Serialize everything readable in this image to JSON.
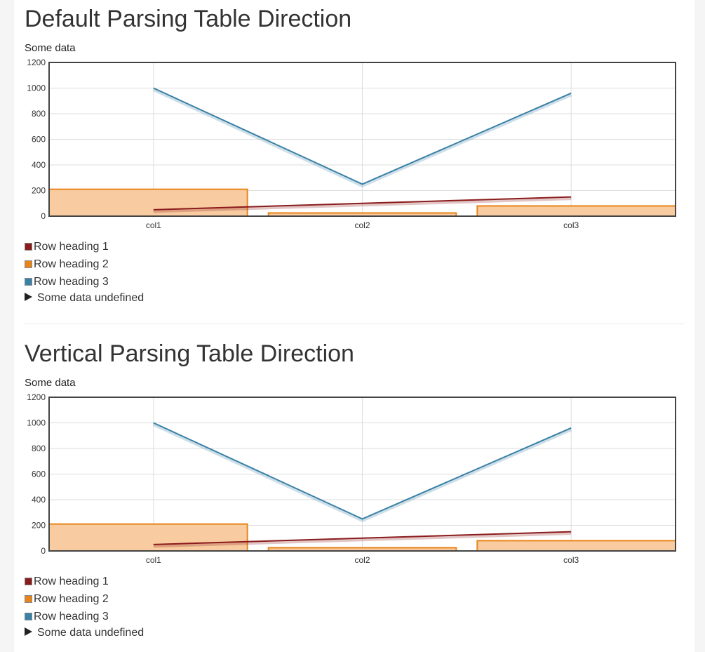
{
  "sections": [
    {
      "title": "Default Parsing Table Direction",
      "caption": "Some data",
      "legend": [
        {
          "label": "Row heading 1",
          "color": "#8b1c1c"
        },
        {
          "label": "Row heading 2",
          "color": "#e8851a"
        },
        {
          "label": "Row heading 3",
          "color": "#3a81a6"
        }
      ],
      "undefined_label": "Some data undefined"
    },
    {
      "title": "Vertical Parsing Table Direction",
      "caption": "Some data",
      "legend": [
        {
          "label": "Row heading 1",
          "color": "#8b1c1c"
        },
        {
          "label": "Row heading 2",
          "color": "#e8851a"
        },
        {
          "label": "Row heading 3",
          "color": "#3a81a6"
        }
      ],
      "undefined_label": "Some data undefined"
    }
  ],
  "chart_data": [
    {
      "type": "bar",
      "title": "Some data",
      "categories": [
        "col1",
        "col2",
        "col3"
      ],
      "yticks": [
        "0",
        "200",
        "400",
        "600",
        "800",
        "1000",
        "1200"
      ],
      "ylim": [
        0,
        1200
      ],
      "grid": true,
      "series": [
        {
          "name": "Row heading 1",
          "type": "line",
          "color": "#8b1c1c",
          "values": [
            50,
            100,
            150
          ]
        },
        {
          "name": "Row heading 2",
          "type": "bar",
          "color": "#e8851a",
          "fill": "#f8cba0",
          "values": [
            210,
            25,
            80
          ]
        },
        {
          "name": "Row heading 3",
          "type": "line",
          "color": "#3a81a6",
          "values": [
            1000,
            250,
            960
          ]
        }
      ]
    },
    {
      "type": "bar",
      "title": "Some data",
      "categories": [
        "col1",
        "col2",
        "col3"
      ],
      "yticks": [
        "0",
        "200",
        "400",
        "600",
        "800",
        "1000",
        "1200"
      ],
      "ylim": [
        0,
        1200
      ],
      "grid": true,
      "series": [
        {
          "name": "Row heading 1",
          "type": "line",
          "color": "#8b1c1c",
          "values": [
            50,
            100,
            150
          ]
        },
        {
          "name": "Row heading 2",
          "type": "bar",
          "color": "#e8851a",
          "fill": "#f8cba0",
          "values": [
            210,
            25,
            80
          ]
        },
        {
          "name": "Row heading 3",
          "type": "line",
          "color": "#3a81a6",
          "values": [
            1000,
            250,
            960
          ]
        }
      ]
    }
  ]
}
